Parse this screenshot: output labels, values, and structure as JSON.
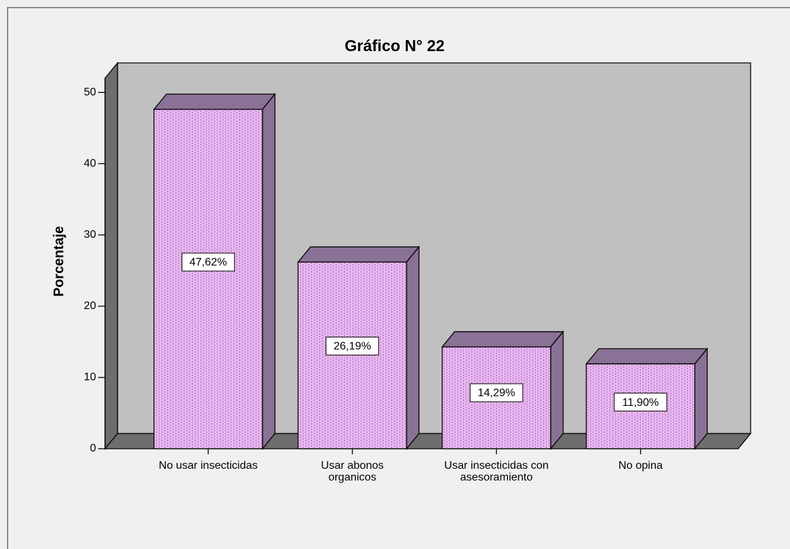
{
  "chart_data": {
    "type": "bar3d",
    "title": "Gráfico N° 22",
    "y_label": "Porcentaje",
    "categories": [
      "No usar insecticidas",
      "Usar abonos organicos",
      "Usar insecticidas con asesoramiento",
      "No opina"
    ],
    "values": [
      47.62,
      26.19,
      14.29,
      11.9
    ],
    "value_labels": [
      "47,62%",
      "26,19%",
      "14,29%",
      "11,90%"
    ],
    "color": "#e9b3f2",
    "ylim": [
      0,
      52
    ],
    "yticks": [
      0,
      10,
      20,
      30,
      40,
      50
    ]
  }
}
